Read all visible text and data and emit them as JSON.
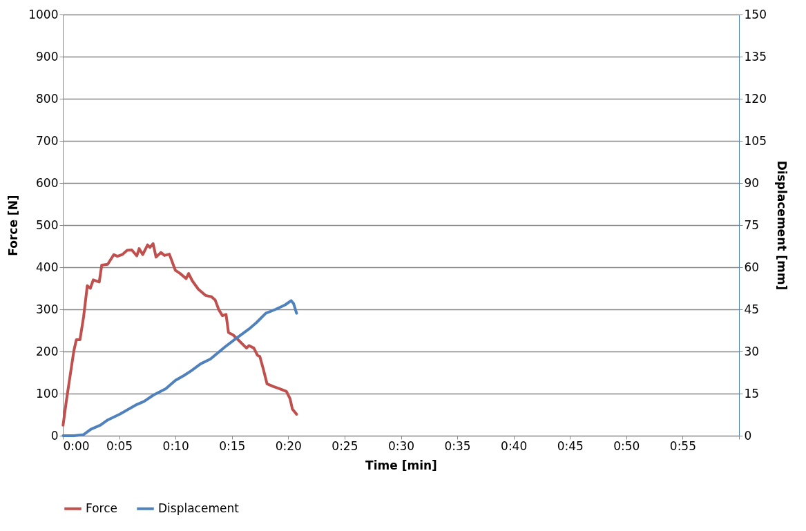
{
  "chart_data": {
    "type": "line",
    "xlabel": "Time [min]",
    "ylabel": "Force [N]",
    "y2label": "Displacement [mm]",
    "xlim": [
      0,
      60
    ],
    "xticks": [
      {
        "value": 0,
        "label": "0:00"
      },
      {
        "value": 5,
        "label": "0:05"
      },
      {
        "value": 10,
        "label": "0:10"
      },
      {
        "value": 15,
        "label": "0:15"
      },
      {
        "value": 20,
        "label": "0:20"
      },
      {
        "value": 25,
        "label": "0:25"
      },
      {
        "value": 30,
        "label": "0:30"
      },
      {
        "value": 35,
        "label": "0:35"
      },
      {
        "value": 40,
        "label": "0:40"
      },
      {
        "value": 45,
        "label": "0:45"
      },
      {
        "value": 50,
        "label": "0:50"
      },
      {
        "value": 55,
        "label": "0:55"
      },
      {
        "value": 60,
        "label": null
      }
    ],
    "ylim": [
      0,
      1000
    ],
    "yticks": [
      0,
      100,
      200,
      300,
      400,
      500,
      600,
      700,
      800,
      900,
      1000
    ],
    "y2lim": [
      0,
      150
    ],
    "y2ticks": [
      0,
      15,
      30,
      45,
      60,
      75,
      90,
      105,
      120,
      135,
      150
    ],
    "grid": "y",
    "legend": "bottom",
    "marker": "none",
    "line_style": "solid",
    "series": [
      {
        "name": "Force",
        "color": "#c0504d",
        "x": [
          0.02,
          0.34,
          0.98,
          1.2,
          1.52,
          1.84,
          2.17,
          2.44,
          2.7,
          3.23,
          3.45,
          3.98,
          4.52,
          4.84,
          5.27,
          5.7,
          6.12,
          6.56,
          6.77,
          7.09,
          7.52,
          7.73,
          8.01,
          8.27,
          8.7,
          9.02,
          9.45,
          9.98,
          10.41,
          10.94,
          11.16,
          11.48,
          12.02,
          12.66,
          13.19,
          13.52,
          13.84,
          14.16,
          14.48,
          14.7,
          15.12,
          15.66,
          16.3,
          16.52,
          16.95,
          17.27,
          17.48,
          17.8,
          18.12,
          18.66,
          19.3,
          19.84,
          20.16,
          20.37,
          20.74
        ],
        "values": [
          25,
          88,
          202,
          228,
          228,
          282,
          356,
          350,
          370,
          365,
          405,
          407,
          430,
          426,
          430,
          440,
          441,
          427,
          444,
          430,
          453,
          447,
          456,
          424,
          435,
          428,
          431,
          393,
          385,
          373,
          385,
          368,
          348,
          333,
          330,
          322,
          299,
          285,
          288,
          245,
          239,
          225,
          208,
          214,
          208,
          191,
          188,
          157,
          123,
          117,
          111,
          105,
          88,
          63,
          51
        ]
      },
      {
        "name": "Displacement",
        "color": "#4f81bd",
        "axis": "y2",
        "x": [
          0.02,
          0.98,
          1.84,
          2.49,
          3.34,
          3.98,
          5.06,
          6.56,
          7.2,
          8.05,
          9.13,
          9.98,
          10.73,
          11.38,
          12.23,
          13.09,
          14.38,
          15.23,
          16.52,
          17.16,
          18.01,
          18.88,
          19.73,
          20.26,
          20.48,
          20.74
        ],
        "values": [
          0,
          0,
          0.4,
          2.3,
          3.8,
          5.6,
          7.7,
          11.1,
          12.2,
          14.5,
          16.7,
          19.7,
          21.4,
          23.1,
          25.6,
          27.3,
          31.6,
          34.2,
          38,
          40.2,
          43.6,
          45,
          46.6,
          48.1,
          47,
          43.6
        ]
      }
    ]
  }
}
